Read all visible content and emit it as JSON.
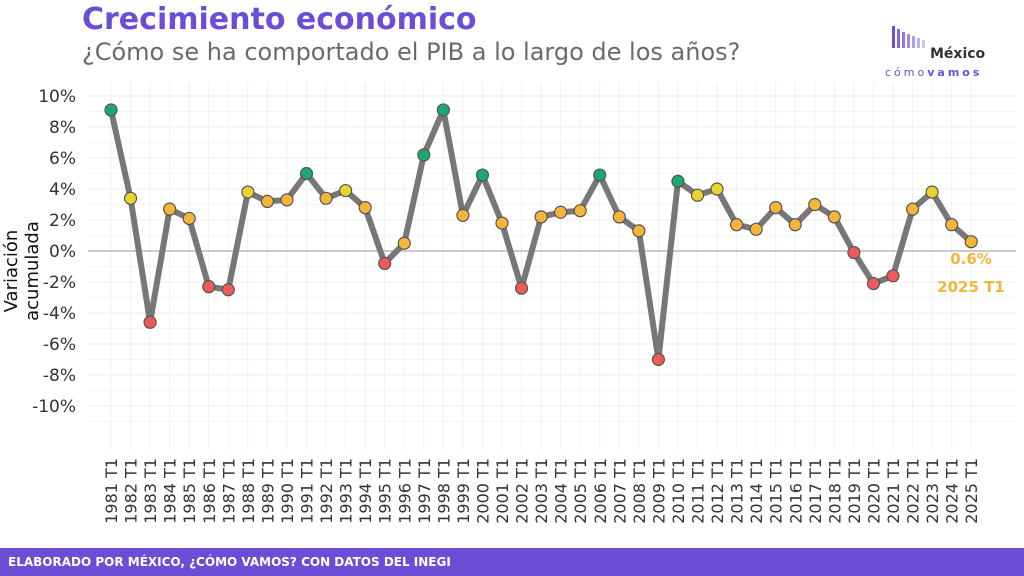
{
  "header": {
    "title": "Crecimiento económico",
    "subtitle": "¿Cómo se ha comportado el PIB a lo largo de los años?"
  },
  "logo": {
    "brand_line1": "México",
    "brand_line2_a": "cómo",
    "brand_line2_b": "vamos"
  },
  "footer": {
    "text": "ELABORADO POR MÉXICO, ¿CÓMO VAMOS? CON DATOS DEL INEGI"
  },
  "colors": {
    "accent": "#6a4fd6",
    "line": "#777777",
    "green": "#1aa870",
    "yellow": "#e8d62c",
    "orange": "#f5b43a",
    "red": "#ec5a5a"
  },
  "chart_data": {
    "type": "line",
    "ylabel": "Variación acumulada",
    "xlabel": "",
    "ylim": [
      -10,
      10
    ],
    "yticks": [
      "10%",
      "8%",
      "6%",
      "4%",
      "2%",
      "0%",
      "-2%",
      "-4%",
      "-6%",
      "-8%",
      "-10%"
    ],
    "ytick_values": [
      10,
      8,
      6,
      4,
      2,
      0,
      -2,
      -4,
      -6,
      -8,
      -10
    ],
    "grid": true,
    "categories": [
      "1981 T1",
      "1982 T1",
      "1983 T1",
      "1984 T1",
      "1985 T1",
      "1986 T1",
      "1987 T1",
      "1988 T1",
      "1989 T1",
      "1990 T1",
      "1991 T1",
      "1992 T1",
      "1993 T1",
      "1994 T1",
      "1995 T1",
      "1996 T1",
      "1997 T1",
      "1998 T1",
      "1999 T1",
      "2000 T1",
      "2001 T1",
      "2002 T1",
      "2003 T1",
      "2004 T1",
      "2005 T1",
      "2006 T1",
      "2007 T1",
      "2008 T1",
      "2009 T1",
      "2010 T1",
      "2011 T1",
      "2012 T1",
      "2013 T1",
      "2014 T1",
      "2015 T1",
      "2016 T1",
      "2017 T1",
      "2018 T1",
      "2019 T1",
      "2020 T1",
      "2021 T1",
      "2022 T1",
      "2023 T1",
      "2024 T1",
      "2025 T1"
    ],
    "values": [
      9.1,
      3.4,
      -4.6,
      2.7,
      2.1,
      -2.3,
      -2.5,
      3.8,
      3.2,
      3.3,
      5.0,
      3.4,
      3.9,
      2.8,
      -0.8,
      0.5,
      6.2,
      9.1,
      2.3,
      4.9,
      1.8,
      -2.4,
      2.2,
      2.5,
      2.6,
      4.9,
      2.2,
      1.3,
      -7.0,
      4.5,
      3.6,
      4.0,
      1.7,
      1.4,
      2.8,
      1.7,
      3.0,
      2.2,
      -0.1,
      -2.1,
      -1.6,
      2.7,
      3.8,
      1.7,
      0.6
    ],
    "point_colors": [
      "green",
      "yellow",
      "red",
      "orange",
      "orange",
      "red",
      "red",
      "yellow",
      "orange",
      "orange",
      "green",
      "orange",
      "yellow",
      "orange",
      "red",
      "orange",
      "green",
      "green",
      "orange",
      "green",
      "orange",
      "red",
      "orange",
      "orange",
      "orange",
      "green",
      "orange",
      "orange",
      "red",
      "green",
      "yellow",
      "yellow",
      "orange",
      "orange",
      "orange",
      "orange",
      "orange",
      "orange",
      "red",
      "red",
      "red",
      "orange",
      "yellow",
      "orange",
      "orange"
    ],
    "annotation": {
      "value_label": "0.6%",
      "period_label": "2025 T1"
    }
  }
}
